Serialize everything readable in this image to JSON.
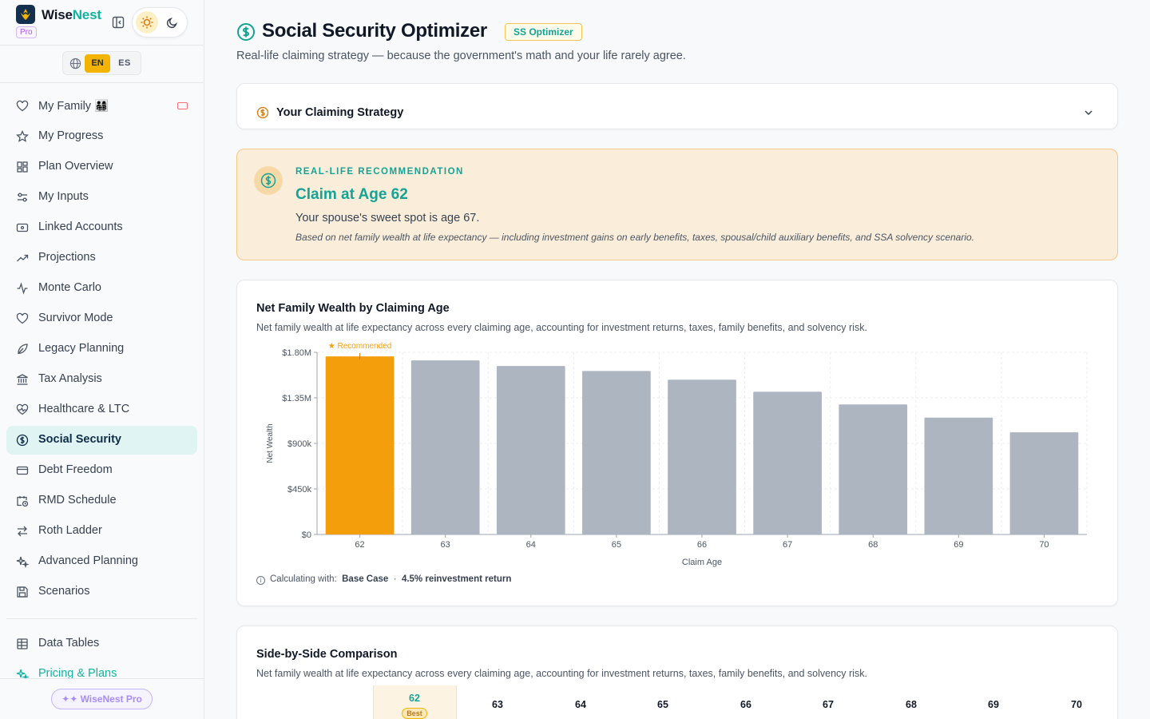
{
  "brand": {
    "name_part1": "Wise",
    "name_part2": "Nest",
    "plan_badge": "Pro"
  },
  "language": {
    "en": "EN",
    "es": "ES",
    "selected": "EN"
  },
  "sidebar": {
    "items": [
      {
        "label": "My Family 👨‍👩‍👧‍👦",
        "icon": "heart-icon"
      },
      {
        "label": "My Progress",
        "icon": "star-icon"
      },
      {
        "label": "Plan Overview",
        "icon": "grid-icon"
      },
      {
        "label": "My Inputs",
        "icon": "sliders-icon"
      },
      {
        "label": "Linked Accounts",
        "icon": "wallet-icon"
      },
      {
        "label": "Projections",
        "icon": "trending-up-icon"
      },
      {
        "label": "Monte Carlo",
        "icon": "activity-icon"
      },
      {
        "label": "Survivor Mode",
        "icon": "heart-icon"
      },
      {
        "label": "Legacy Planning",
        "icon": "feather-icon"
      },
      {
        "label": "Tax Analysis",
        "icon": "landmark-icon"
      },
      {
        "label": "Healthcare & LTC",
        "icon": "heart-pulse-icon"
      },
      {
        "label": "Social Security",
        "icon": "dollar-circle-icon"
      },
      {
        "label": "Debt Freedom",
        "icon": "credit-card-icon"
      },
      {
        "label": "RMD Schedule",
        "icon": "calendar-clock-icon"
      },
      {
        "label": "Roth Ladder",
        "icon": "swap-icon"
      },
      {
        "label": "Advanced Planning",
        "icon": "sparkles-icon"
      },
      {
        "label": "Scenarios",
        "icon": "save-icon"
      }
    ],
    "secondary": [
      {
        "label": "Data Tables",
        "icon": "table-icon"
      },
      {
        "label": "Pricing & Plans",
        "icon": "sparkles-icon"
      }
    ],
    "active": "Social Security",
    "upgrade_label": "✦✦ WiseNest Pro"
  },
  "header": {
    "title": "Social Security Optimizer",
    "badge": "SS Optimizer",
    "subtitle": "Real-life claiming strategy — because the government's math and your life rarely agree."
  },
  "strategy": {
    "title": "Your Claiming Strategy"
  },
  "recommendation": {
    "eyebrow": "REAL-LIFE RECOMMENDATION",
    "title": "Claim at Age 62",
    "spouse_line": "Your spouse's sweet spot is age 67.",
    "note": "Based on net family wealth at life expectancy — including investment gains on early benefits, taxes, spousal/child auxiliary benefits, and SSA solvency scenario."
  },
  "chart_card": {
    "title": "Net Family Wealth by Claiming Age",
    "description": "Net family wealth at life expectancy across every claiming age, accounting for investment returns, taxes, family benefits, and solvency risk.",
    "calc_prefix": "Calculating with:",
    "calc_scenario": "Base Case",
    "calc_sep": "·",
    "calc_return": "4.5% reinvestment return"
  },
  "chart_data": {
    "type": "bar",
    "categories": [
      "62",
      "63",
      "64",
      "65",
      "66",
      "67",
      "68",
      "69",
      "70"
    ],
    "values": [
      1760000,
      1720000,
      1665000,
      1615000,
      1530000,
      1410000,
      1285000,
      1155000,
      1010000
    ],
    "ylabel": "Net Wealth",
    "xlabel": "Claim Age",
    "yticks": [
      "$0",
      "$450k",
      "$900k",
      "$1.35M",
      "$1.80M"
    ],
    "ytick_values": [
      0,
      450000,
      900000,
      1350000,
      1800000
    ],
    "ylim": [
      0,
      1800000
    ],
    "highlight_index": 0,
    "highlight_label": "★ Recommended",
    "highlight_color": "#f59e0b",
    "bar_color": "#adb5c0",
    "grid": true
  },
  "comparison": {
    "title": "Side-by-Side Comparison",
    "description": "Net family wealth at life expectancy across every claiming age, accounting for investment returns, taxes, family benefits, and solvency risk.",
    "best_age": "62",
    "best_label": "Best",
    "ages": [
      "63",
      "64",
      "65",
      "66",
      "67",
      "68",
      "69",
      "70"
    ]
  }
}
